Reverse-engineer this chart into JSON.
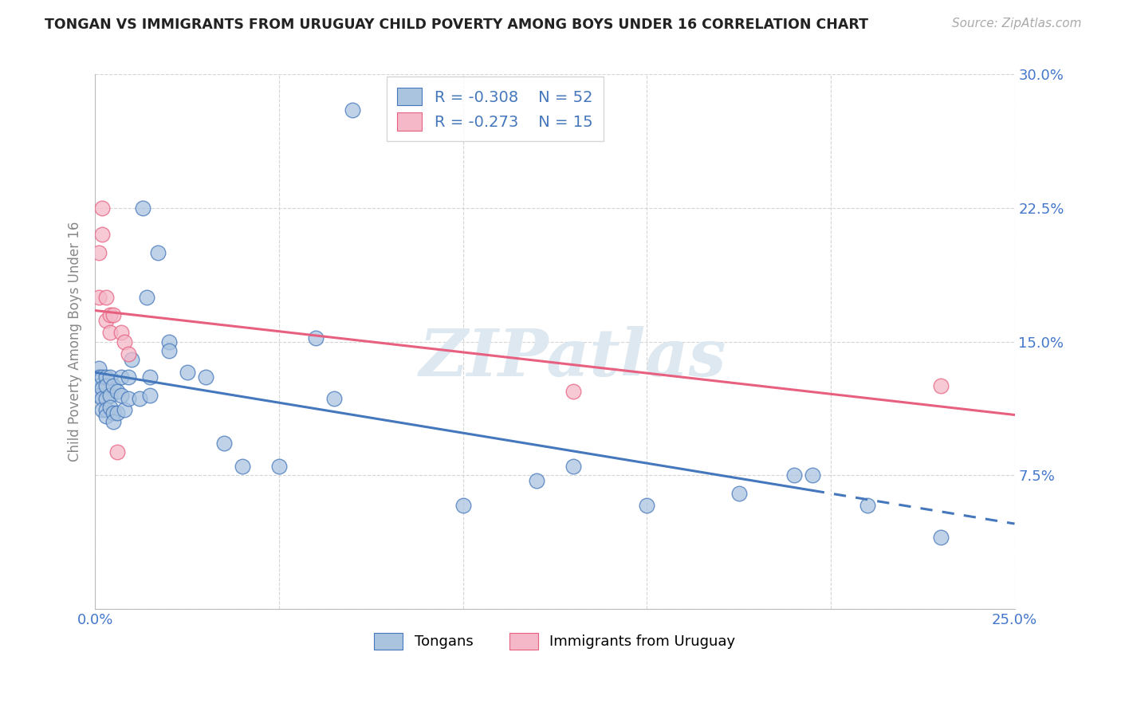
{
  "title": "TONGAN VS IMMIGRANTS FROM URUGUAY CHILD POVERTY AMONG BOYS UNDER 16 CORRELATION CHART",
  "source": "Source: ZipAtlas.com",
  "ylabel": "Child Poverty Among Boys Under 16",
  "xlim": [
    0.0,
    0.25
  ],
  "ylim": [
    0.0,
    0.3
  ],
  "xticks": [
    0.0,
    0.05,
    0.1,
    0.15,
    0.2,
    0.25
  ],
  "xticklabels": [
    "0.0%",
    "",
    "",
    "",
    "",
    "25.0%"
  ],
  "yticks": [
    0.0,
    0.075,
    0.15,
    0.225,
    0.3
  ],
  "yticklabels_right": [
    "",
    "7.5%",
    "15.0%",
    "22.5%",
    "30.0%"
  ],
  "blue_scatter_color": "#aac4e0",
  "pink_scatter_color": "#f4b8c8",
  "line_blue_color": "#4477bb",
  "line_pink_color": "#e86080",
  "legend_text_color": "#4477bb",
  "r_n_color": "#4477bb",
  "watermark": "ZIPatlas",
  "watermark_color": "#dde8f0",
  "axis_tick_color": "#4477cc",
  "ylabel_color": "#888888",
  "title_color": "#222222",
  "grid_color": "#d5d5d5",
  "bg_color": "#ffffff",
  "tongans_x": [
    0.001,
    0.001,
    0.001,
    0.001,
    0.002,
    0.002,
    0.002,
    0.002,
    0.003,
    0.003,
    0.003,
    0.003,
    0.003,
    0.004,
    0.004,
    0.004,
    0.005,
    0.005,
    0.005,
    0.006,
    0.006,
    0.007,
    0.007,
    0.008,
    0.009,
    0.009,
    0.01,
    0.012,
    0.013,
    0.014,
    0.015,
    0.015,
    0.017,
    0.02,
    0.02,
    0.025,
    0.03,
    0.035,
    0.04,
    0.05,
    0.06,
    0.065,
    0.07,
    0.1,
    0.12,
    0.13,
    0.15,
    0.175,
    0.19,
    0.195,
    0.21,
    0.23
  ],
  "tongans_y": [
    0.135,
    0.13,
    0.125,
    0.12,
    0.13,
    0.124,
    0.118,
    0.112,
    0.13,
    0.125,
    0.118,
    0.112,
    0.108,
    0.13,
    0.12,
    0.113,
    0.125,
    0.11,
    0.105,
    0.122,
    0.11,
    0.13,
    0.12,
    0.112,
    0.13,
    0.118,
    0.14,
    0.118,
    0.225,
    0.175,
    0.13,
    0.12,
    0.2,
    0.15,
    0.145,
    0.133,
    0.13,
    0.093,
    0.08,
    0.08,
    0.152,
    0.118,
    0.28,
    0.058,
    0.072,
    0.08,
    0.058,
    0.065,
    0.075,
    0.075,
    0.058,
    0.04
  ],
  "uruguay_x": [
    0.001,
    0.001,
    0.002,
    0.002,
    0.003,
    0.003,
    0.004,
    0.004,
    0.005,
    0.006,
    0.007,
    0.008,
    0.009,
    0.13,
    0.23
  ],
  "uruguay_y": [
    0.2,
    0.175,
    0.225,
    0.21,
    0.175,
    0.162,
    0.165,
    0.155,
    0.165,
    0.088,
    0.155,
    0.15,
    0.143,
    0.122,
    0.125
  ]
}
